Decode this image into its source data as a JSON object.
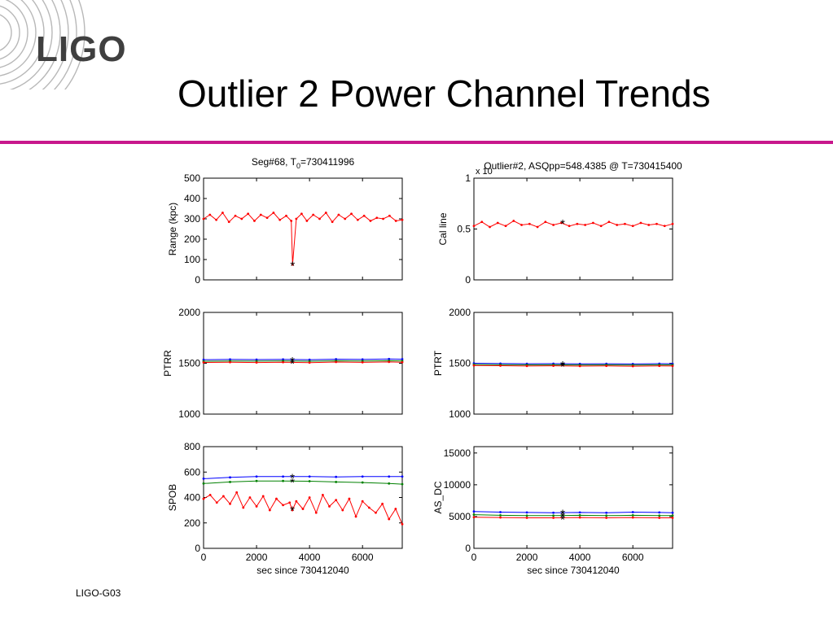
{
  "slide": {
    "logo_text": "LIGO",
    "title": "Outlier 2 Power Channel Trends",
    "footer": "LIGO-G03"
  },
  "chart_data": [
    {
      "type": "line",
      "title": "Seg#68,  T0=730411996",
      "title_main": "Seg#68,  T",
      "title_sub": "0",
      "title_tail": "=730411996",
      "ylabel": "Range (kpc)",
      "xlabel": "",
      "xlim": [
        0,
        7500
      ],
      "ylim": [
        0,
        500
      ],
      "yticks": [
        0,
        100,
        200,
        300,
        400,
        500
      ],
      "xticks": [],
      "series": [
        {
          "color": "#ff0000",
          "x": [
            0,
            240,
            480,
            720,
            960,
            1200,
            1440,
            1680,
            1920,
            2160,
            2400,
            2640,
            2880,
            3120,
            3310,
            3360,
            3500,
            3700,
            3900,
            4140,
            4380,
            4620,
            4860,
            5100,
            5340,
            5580,
            5820,
            6060,
            6300,
            6540,
            6780,
            7020,
            7260,
            7500
          ],
          "y": [
            300,
            320,
            295,
            330,
            285,
            315,
            300,
            325,
            290,
            320,
            305,
            330,
            295,
            315,
            290,
            75,
            300,
            325,
            290,
            320,
            300,
            330,
            285,
            320,
            300,
            325,
            295,
            315,
            290,
            305,
            300,
            315,
            290,
            295
          ]
        }
      ],
      "markers": [
        {
          "x": 3360,
          "y": 75,
          "symbol": "*"
        }
      ]
    },
    {
      "type": "line",
      "title": "Outlier#2, ASQpp=548.4385 @ T=730415400",
      "exponent": "x 10",
      "ylabel": "Cal line",
      "xlabel": "",
      "xlim": [
        0,
        7500
      ],
      "ylim": [
        0,
        1
      ],
      "yticks": [
        0,
        0.5,
        1
      ],
      "xticks": [],
      "series": [
        {
          "color": "#ff0000",
          "x": [
            0,
            300,
            600,
            900,
            1200,
            1500,
            1800,
            2100,
            2400,
            2700,
            3000,
            3300,
            3600,
            3900,
            4200,
            4500,
            4800,
            5100,
            5400,
            5700,
            6000,
            6300,
            6600,
            6900,
            7200,
            7500
          ],
          "y": [
            0.53,
            0.57,
            0.52,
            0.56,
            0.53,
            0.58,
            0.54,
            0.55,
            0.52,
            0.57,
            0.54,
            0.56,
            0.53,
            0.55,
            0.54,
            0.56,
            0.53,
            0.57,
            0.54,
            0.55,
            0.53,
            0.56,
            0.54,
            0.55,
            0.53,
            0.55
          ]
        }
      ],
      "markers": [
        {
          "x": 3350,
          "y": 0.56,
          "symbol": "*"
        }
      ]
    },
    {
      "type": "line",
      "title": "",
      "ylabel": "PTRR",
      "xlabel": "",
      "xlim": [
        0,
        7500
      ],
      "ylim": [
        1000,
        2000
      ],
      "yticks": [
        1000,
        1500,
        2000
      ],
      "xticks": [],
      "series": [
        {
          "color": "#0000ff",
          "x": [
            0,
            1000,
            2000,
            3000,
            4000,
            5000,
            6000,
            7000,
            7500
          ],
          "y": [
            1535,
            1538,
            1536,
            1538,
            1535,
            1540,
            1538,
            1542,
            1540
          ]
        },
        {
          "color": "#008000",
          "x": [
            0,
            1000,
            2000,
            3000,
            4000,
            5000,
            6000,
            7000,
            7500
          ],
          "y": [
            1520,
            1522,
            1521,
            1523,
            1520,
            1524,
            1522,
            1525,
            1523
          ]
        },
        {
          "color": "#ff0000",
          "x": [
            0,
            1000,
            2000,
            3000,
            4000,
            5000,
            6000,
            7000,
            7500
          ],
          "y": [
            1508,
            1510,
            1507,
            1510,
            1506,
            1512,
            1509,
            1513,
            1510
          ]
        }
      ],
      "markers": [
        {
          "x": 3350,
          "y": 1530,
          "symbol": "*"
        },
        {
          "x": 3350,
          "y": 1505,
          "symbol": "*"
        }
      ]
    },
    {
      "type": "line",
      "title": "",
      "ylabel": "PTRT",
      "xlabel": "",
      "xlim": [
        0,
        7500
      ],
      "ylim": [
        1000,
        2000
      ],
      "yticks": [
        1000,
        1500,
        2000
      ],
      "xticks": [],
      "series": [
        {
          "color": "#0000ff",
          "x": [
            0,
            1000,
            2000,
            3000,
            4000,
            5000,
            6000,
            7000,
            7500
          ],
          "y": [
            1500,
            1497,
            1495,
            1496,
            1494,
            1495,
            1493,
            1496,
            1495
          ]
        },
        {
          "color": "#008000",
          "x": [
            0,
            1000,
            2000,
            3000,
            4000,
            5000,
            6000,
            7000,
            7500
          ],
          "y": [
            1488,
            1486,
            1484,
            1485,
            1483,
            1484,
            1482,
            1485,
            1484
          ]
        },
        {
          "color": "#ff0000",
          "x": [
            0,
            1000,
            2000,
            3000,
            4000,
            5000,
            6000,
            7000,
            7500
          ],
          "y": [
            1478,
            1476,
            1473,
            1475,
            1472,
            1474,
            1471,
            1474,
            1473
          ]
        }
      ],
      "markers": [
        {
          "x": 3350,
          "y": 1488,
          "symbol": "*"
        },
        {
          "x": 3350,
          "y": 1476,
          "symbol": "*"
        }
      ]
    },
    {
      "type": "line",
      "title": "",
      "ylabel": "SPOB",
      "xlabel": "sec since 730412040",
      "xlim": [
        0,
        7500
      ],
      "ylim": [
        0,
        800
      ],
      "yticks": [
        0,
        200,
        400,
        600,
        800
      ],
      "xticks": [
        0,
        2000,
        4000,
        6000
      ],
      "series": [
        {
          "color": "#0000ff",
          "x": [
            0,
            1000,
            2000,
            3000,
            4000,
            5000,
            6000,
            7000,
            7500
          ],
          "y": [
            548,
            558,
            565,
            565,
            565,
            562,
            565,
            565,
            565
          ]
        },
        {
          "color": "#008000",
          "x": [
            0,
            1000,
            2000,
            3000,
            4000,
            5000,
            6000,
            7000,
            7500
          ],
          "y": [
            510,
            522,
            530,
            530,
            528,
            522,
            518,
            510,
            505
          ]
        },
        {
          "color": "#ff0000",
          "x": [
            0,
            250,
            500,
            750,
            1000,
            1250,
            1500,
            1750,
            2000,
            2250,
            2500,
            2750,
            3000,
            3250,
            3350,
            3500,
            3750,
            4000,
            4250,
            4500,
            4750,
            5000,
            5250,
            5500,
            5750,
            6000,
            6250,
            6500,
            6750,
            7000,
            7250,
            7500
          ],
          "y": [
            390,
            420,
            360,
            410,
            350,
            440,
            320,
            400,
            330,
            410,
            300,
            390,
            340,
            360,
            300,
            370,
            310,
            400,
            280,
            420,
            330,
            380,
            300,
            390,
            250,
            370,
            320,
            280,
            350,
            230,
            310,
            190
          ]
        }
      ],
      "markers": [
        {
          "x": 3350,
          "y": 560,
          "symbol": "*"
        },
        {
          "x": 3350,
          "y": 525,
          "symbol": "*"
        },
        {
          "x": 3350,
          "y": 305,
          "symbol": "*"
        }
      ]
    },
    {
      "type": "line",
      "title": "",
      "ylabel": "AS_DC",
      "xlabel": "sec since 730412040",
      "xlim": [
        0,
        7500
      ],
      "ylim": [
        0,
        16000
      ],
      "yticks": [
        0,
        5000,
        10000,
        15000
      ],
      "xticks": [
        0,
        2000,
        4000,
        6000
      ],
      "series": [
        {
          "color": "#0000ff",
          "x": [
            0,
            1000,
            2000,
            3000,
            4000,
            5000,
            6000,
            7000,
            7500
          ],
          "y": [
            5800,
            5700,
            5650,
            5600,
            5650,
            5600,
            5700,
            5650,
            5600
          ]
        },
        {
          "color": "#008000",
          "x": [
            0,
            1000,
            2000,
            3000,
            4000,
            5000,
            6000,
            7000,
            7500
          ],
          "y": [
            5300,
            5200,
            5150,
            5150,
            5200,
            5150,
            5200,
            5150,
            5150
          ]
        },
        {
          "color": "#ff0000",
          "x": [
            0,
            1000,
            2000,
            3000,
            4000,
            5000,
            6000,
            7000,
            7500
          ],
          "y": [
            4900,
            4850,
            4800,
            4800,
            4850,
            4800,
            4850,
            4800,
            4800
          ]
        }
      ],
      "markers": [
        {
          "x": 3350,
          "y": 5600,
          "symbol": "*"
        },
        {
          "x": 3350,
          "y": 5100,
          "symbol": "*"
        },
        {
          "x": 3350,
          "y": 4700,
          "symbol": "*"
        }
      ]
    }
  ]
}
